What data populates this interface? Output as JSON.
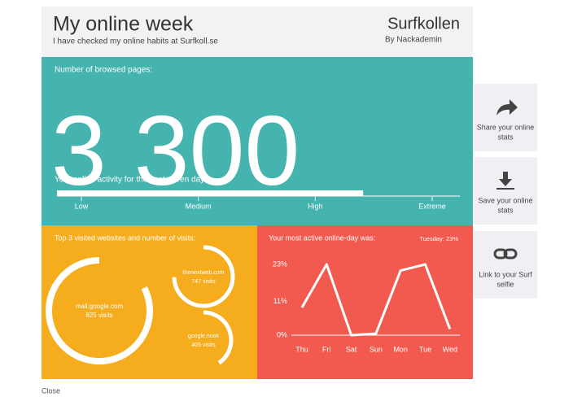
{
  "header": {
    "title": "My online week",
    "subtitle": "I have checked my online habits at Surfkoll.se",
    "logo": "Surfkollen",
    "logo_sub": "By Nackademin"
  },
  "pages": {
    "label": "Number of browsed pages:",
    "value": "3 300"
  },
  "activity": {
    "label": "Your online activity for the past seven days:",
    "value": 76,
    "range": [
      0,
      100
    ],
    "levels": [
      "Low",
      "Medium",
      "High",
      "Extreme"
    ]
  },
  "websites": {
    "label": "Top 3 visited websites and number of visits:",
    "range": [
      0,
      1000
    ],
    "sites": [
      {
        "name": "mail.google.com",
        "visits": 825,
        "visits_label": "825 visits"
      },
      {
        "name": "thenextweb.com",
        "visits": 747,
        "visits_label": "747 visits"
      },
      {
        "name": "google.nook",
        "visits": 405,
        "visits_label": "405 visits"
      }
    ]
  },
  "active_day": {
    "label": "Your most active online-day was:",
    "highlight": "Tuesday: 23%",
    "chart": {
      "type": "line",
      "categories": [
        "Thu",
        "Fri",
        "Sat",
        "Sun",
        "Mon",
        "Tue",
        "Wed"
      ],
      "values": [
        9,
        23,
        0,
        0.5,
        21,
        23,
        2
      ],
      "color": "#ffffff",
      "ylim": [
        0,
        23
      ],
      "yticks": [
        {
          "value": 0,
          "label": "0%"
        },
        {
          "value": 11,
          "label": "11%"
        },
        {
          "value": 23,
          "label": "23%"
        }
      ]
    }
  },
  "actions": [
    {
      "lines": [
        "Share your online",
        "stats"
      ]
    },
    {
      "lines": [
        "Save your online",
        "stats"
      ]
    },
    {
      "lines": [
        "Link to your Surf",
        "selfie"
      ]
    }
  ],
  "close": "Close"
}
